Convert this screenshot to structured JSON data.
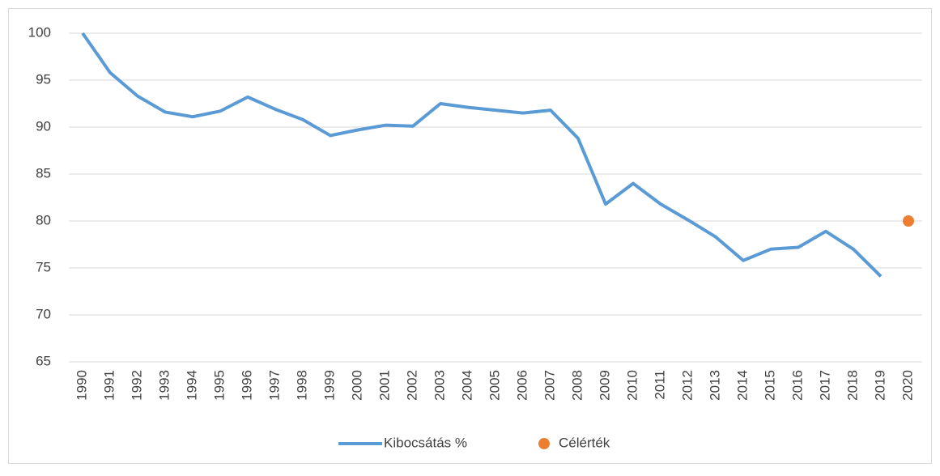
{
  "chart_data": {
    "type": "line",
    "categories": [
      "1990",
      "1991",
      "1992",
      "1993",
      "1994",
      "1995",
      "1996",
      "1997",
      "1998",
      "1999",
      "2000",
      "2001",
      "2002",
      "2003",
      "2004",
      "2005",
      "2006",
      "2007",
      "2008",
      "2009",
      "2010",
      "2011",
      "2012",
      "2013",
      "2014",
      "2015",
      "2016",
      "2017",
      "2018",
      "2019",
      "2020"
    ],
    "series": [
      {
        "name": "Kibocsátás %",
        "color": "#5b9bd5",
        "mode": "line",
        "values": [
          100,
          95.8,
          93.3,
          91.6,
          91.1,
          91.7,
          93.2,
          91.9,
          90.8,
          89.1,
          89.7,
          90.2,
          90.1,
          92.5,
          92.1,
          91.8,
          91.5,
          91.8,
          88.8,
          81.8,
          84.0,
          81.8,
          80.1,
          78.3,
          75.8,
          77.0,
          77.2,
          78.9,
          77.0,
          74.1,
          null
        ]
      },
      {
        "name": "Célérték",
        "color": "#ed7d31",
        "mode": "marker",
        "values": [
          null,
          null,
          null,
          null,
          null,
          null,
          null,
          null,
          null,
          null,
          null,
          null,
          null,
          null,
          null,
          null,
          null,
          null,
          null,
          null,
          null,
          null,
          null,
          null,
          null,
          null,
          null,
          null,
          null,
          null,
          80
        ]
      }
    ],
    "ylim": [
      65,
      100
    ],
    "yticks": [
      65,
      70,
      75,
      80,
      85,
      90,
      95,
      100
    ],
    "grid": true,
    "legend": "bottom"
  }
}
